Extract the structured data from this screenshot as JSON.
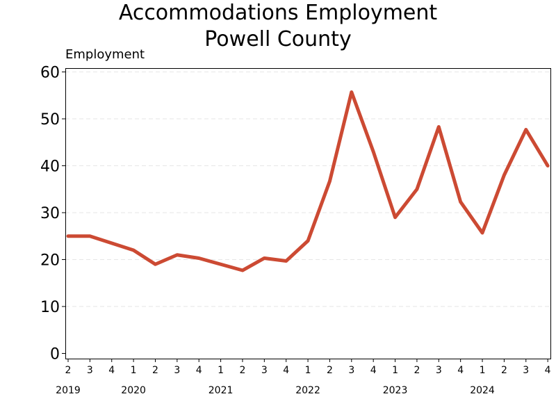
{
  "chart_data": {
    "type": "line",
    "title": [
      "Accommodations Employment",
      "Powell County"
    ],
    "ylabel": "Employment",
    "xlabel": "",
    "ylim": [
      0,
      60
    ],
    "yticks": [
      0,
      10,
      20,
      30,
      40,
      50,
      60
    ],
    "grid": "horizontal dashed",
    "line_color": "#cc4a33",
    "categories": [
      "2",
      "3",
      "4",
      "1",
      "2",
      "3",
      "4",
      "1",
      "2",
      "3",
      "4",
      "1",
      "2",
      "3",
      "4",
      "1",
      "2",
      "3",
      "4",
      "1",
      "2",
      "3",
      "4"
    ],
    "years": [
      {
        "label": "2019",
        "index": 0
      },
      {
        "label": "2020",
        "index": 3
      },
      {
        "label": "2021",
        "index": 7
      },
      {
        "label": "2022",
        "index": 11
      },
      {
        "label": "2023",
        "index": 15
      },
      {
        "label": "2024",
        "index": 19
      }
    ],
    "series": [
      {
        "values": [
          25,
          25,
          23.5,
          22,
          19,
          21,
          20.3,
          19,
          17.7,
          20.3,
          19.7,
          24,
          36.7,
          55.7,
          43,
          29,
          35,
          48.3,
          32.3,
          25.7,
          38,
          47.7,
          40
        ]
      }
    ]
  }
}
